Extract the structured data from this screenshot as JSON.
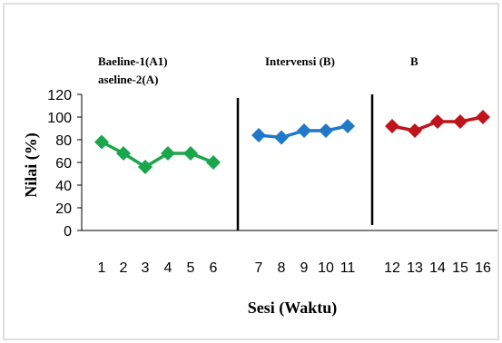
{
  "chart_data": {
    "type": "line",
    "xlabel": "Sesi (Waktu)",
    "ylabel": "Nilai  (%)",
    "ylim": [
      0,
      120
    ],
    "yticks": [
      0,
      20,
      40,
      60,
      80,
      100,
      120
    ],
    "grid": false,
    "legend": "none",
    "phases": [
      {
        "label_lines": [
          "Baeline-1(A1)",
          "aseline-2(A)"
        ]
      },
      {
        "label_lines": [
          "Intervensi (B)"
        ]
      },
      {
        "label_lines": [
          "B"
        ]
      }
    ],
    "series": [
      {
        "color": "#1aa64a",
        "x": [
          1,
          2,
          3,
          4,
          5,
          6
        ],
        "values": [
          78,
          68,
          56,
          68,
          68,
          60
        ]
      },
      {
        "color": "#1f78c8",
        "x": [
          7,
          8,
          9,
          10,
          11
        ],
        "values": [
          84,
          82,
          88,
          88,
          92
        ]
      },
      {
        "color": "#c0141c",
        "x": [
          12,
          13,
          14,
          15,
          16
        ],
        "values": [
          92,
          88,
          96,
          96,
          100
        ]
      }
    ],
    "x_tick_labels": [
      "1",
      "2",
      "3",
      "4",
      "5",
      "6",
      "7",
      "8",
      "9",
      "10",
      "11",
      "12",
      "13",
      "14",
      "15",
      "16"
    ]
  }
}
